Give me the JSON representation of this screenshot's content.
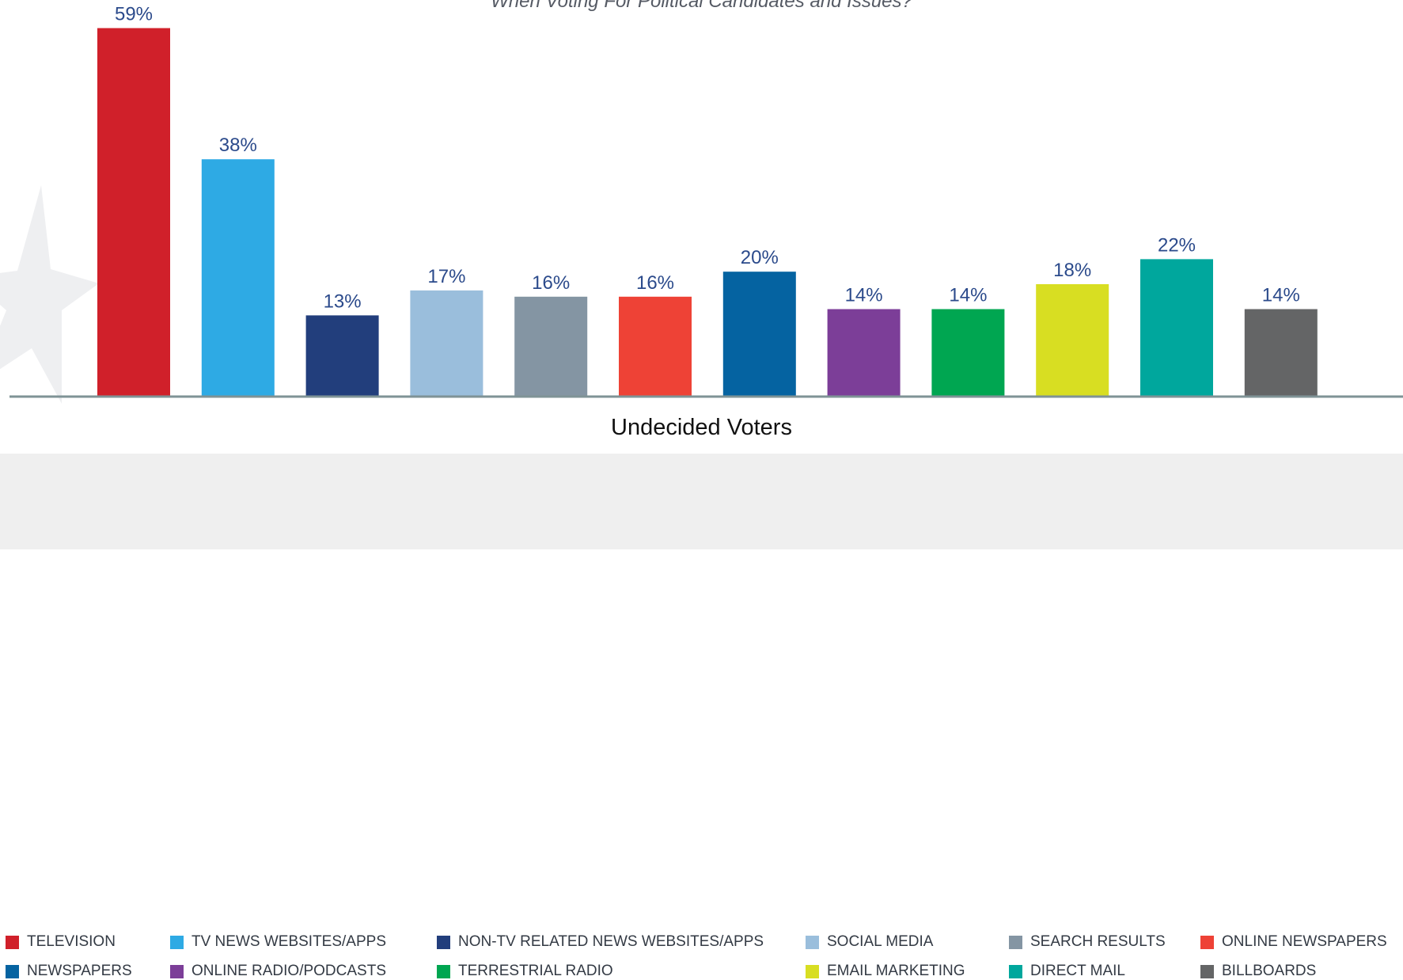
{
  "chart_data": {
    "type": "bar",
    "subtitle": "When Voting For Political Candidates and Issues?",
    "xlabel": "Undecided Voters",
    "ylabel": "",
    "ylim": [
      0,
      60
    ],
    "grid": false,
    "legend_position": "bottom",
    "value_suffix": "%",
    "categories": [
      "TELEVISION",
      "TV NEWS WEBSITES/APPS",
      "NON-TV RELATED NEWS WEBSITES/APPS",
      "SOCIAL MEDIA",
      "SEARCH RESULTS",
      "ONLINE NEWSPAPERS",
      "NEWSPAPERS",
      "ONLINE RADIO/PODCASTS",
      "TERRESTRIAL RADIO",
      "EMAIL MARKETING",
      "DIRECT MAIL",
      "BILLBOARDS"
    ],
    "values": [
      59,
      38,
      13,
      17,
      16,
      16,
      20,
      14,
      14,
      18,
      22,
      14
    ],
    "colors": [
      "#d0202a",
      "#2eaae4",
      "#223e7c",
      "#9abedc",
      "#8495a3",
      "#ee4236",
      "#0563a1",
      "#7c3e98",
      "#00a651",
      "#d8de22",
      "#00a79d",
      "#646566"
    ]
  },
  "legend": [
    {
      "label": "TELEVISION",
      "color": "#d0202a"
    },
    {
      "label": "TV NEWS WEBSITES/APPS",
      "color": "#2eaae4"
    },
    {
      "label": "NON-TV RELATED NEWS WEBSITES/APPS",
      "color": "#223e7c"
    },
    {
      "label": "SOCIAL MEDIA",
      "color": "#9abedc"
    },
    {
      "label": "SEARCH RESULTS",
      "color": "#8495a3"
    },
    {
      "label": "ONLINE NEWSPAPERS",
      "color": "#ee4236"
    },
    {
      "label": "NEWSPAPERS",
      "color": "#0563a1"
    },
    {
      "label": "ONLINE RADIO/PODCASTS",
      "color": "#7c3e98"
    },
    {
      "label": "TERRESTRIAL RADIO",
      "color": "#00a651"
    },
    {
      "label": "EMAIL MARKETING",
      "color": "#d8de22"
    },
    {
      "label": "DIRECT MAIL",
      "color": "#00a79d"
    },
    {
      "label": "BILLBOARDS",
      "color": "#646566"
    }
  ],
  "colors": {
    "value_label": "#2b4a8b",
    "baseline": "#7f9396",
    "watermark": "#eeeff1"
  },
  "icons": {
    "watermark": "star-watermark-icon"
  }
}
